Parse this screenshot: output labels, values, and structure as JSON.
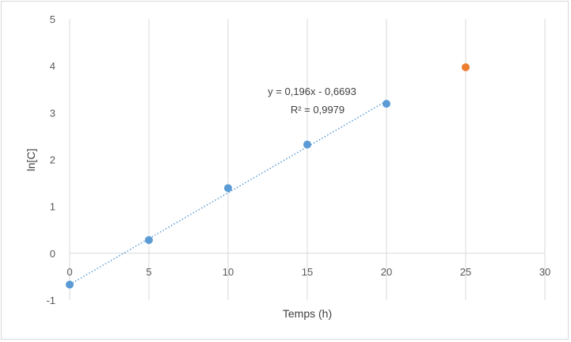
{
  "chart_data": {
    "type": "scatter",
    "xlabel": "Temps (h)",
    "ylabel": "ln[C]",
    "xlim": [
      0,
      30
    ],
    "ylim": [
      -1,
      5
    ],
    "xticks": [
      0,
      5,
      10,
      15,
      20,
      25,
      30
    ],
    "yticks": [
      -1,
      0,
      1,
      2,
      3,
      4,
      5
    ],
    "grid": "vertical",
    "series": [
      {
        "color": "#5b9bd5",
        "x": [
          0,
          5,
          10,
          15,
          20
        ],
        "y": [
          -0.67,
          0.28,
          1.39,
          2.32,
          3.19
        ]
      },
      {
        "color": "#ed7d31",
        "x": [
          25
        ],
        "y": [
          3.97
        ]
      }
    ],
    "trendline": {
      "color": "#5b9bd5",
      "style": "dotted",
      "slope": 0.196,
      "intercept": -0.6693,
      "x_range": [
        0,
        20
      ],
      "equation": "y = 0,196x - 0,6693",
      "r2": "R² = 0,9979"
    }
  }
}
